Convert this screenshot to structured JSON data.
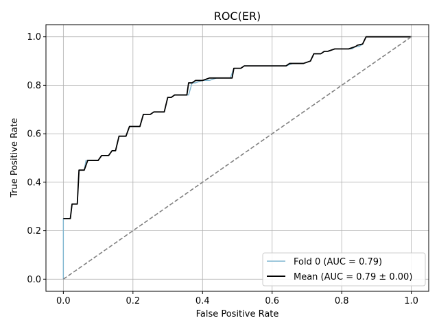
{
  "chart_data": {
    "type": "line",
    "title": "ROC(ER)",
    "xlabel": "False Positive Rate",
    "ylabel": "True Positive Rate",
    "xlim": [
      -0.05,
      1.05
    ],
    "ylim": [
      -0.05,
      1.05
    ],
    "xticks": [
      "0.0",
      "0.2",
      "0.4",
      "0.6",
      "0.8",
      "1.0"
    ],
    "yticks": [
      "0.0",
      "0.2",
      "0.4",
      "0.6",
      "0.8",
      "1.0"
    ],
    "grid": true,
    "legend_position": "lower-right",
    "series": [
      {
        "name": "Fold 0 (AUC = 0.79)",
        "color": "#7fb6d0",
        "style": "step",
        "x": [
          0.0,
          0.0,
          0.02,
          0.025,
          0.04,
          0.045,
          0.06,
          0.065,
          0.1,
          0.11,
          0.13,
          0.14,
          0.15,
          0.16,
          0.18,
          0.19,
          0.22,
          0.23,
          0.25,
          0.26,
          0.29,
          0.3,
          0.31,
          0.32,
          0.36,
          0.37,
          0.38,
          0.4,
          0.42,
          0.44,
          0.46,
          0.48,
          0.49,
          0.51,
          0.52,
          0.55,
          0.6,
          0.64,
          0.66,
          0.69,
          0.71,
          0.72,
          0.74,
          0.75,
          0.76,
          0.78,
          0.8,
          0.83,
          0.84,
          0.85,
          0.86,
          0.87,
          1.0
        ],
        "y": [
          0.0,
          0.25,
          0.25,
          0.31,
          0.31,
          0.45,
          0.45,
          0.49,
          0.49,
          0.51,
          0.51,
          0.53,
          0.53,
          0.59,
          0.59,
          0.63,
          0.63,
          0.68,
          0.68,
          0.69,
          0.69,
          0.75,
          0.75,
          0.76,
          0.76,
          0.81,
          0.81,
          0.82,
          0.82,
          0.83,
          0.83,
          0.83,
          0.87,
          0.87,
          0.88,
          0.88,
          0.88,
          0.88,
          0.89,
          0.89,
          0.9,
          0.93,
          0.93,
          0.94,
          0.94,
          0.95,
          0.95,
          0.95,
          0.96,
          0.96,
          0.97,
          1.0,
          1.0
        ]
      },
      {
        "name": "Mean (AUC = 0.79 ± 0.00)",
        "color": "#000000",
        "style": "line",
        "x": [
          0.0,
          0.0,
          0.02,
          0.025,
          0.04,
          0.045,
          0.06,
          0.07,
          0.1,
          0.11,
          0.13,
          0.14,
          0.15,
          0.16,
          0.18,
          0.19,
          0.22,
          0.23,
          0.25,
          0.26,
          0.29,
          0.3,
          0.31,
          0.32,
          0.355,
          0.36,
          0.37,
          0.38,
          0.4,
          0.42,
          0.44,
          0.485,
          0.49,
          0.5,
          0.51,
          0.52,
          0.55,
          0.6,
          0.64,
          0.65,
          0.69,
          0.71,
          0.72,
          0.74,
          0.75,
          0.76,
          0.78,
          0.8,
          0.82,
          0.83,
          0.84,
          0.845,
          0.86,
          0.87,
          1.0
        ],
        "y": [
          0.25,
          0.25,
          0.25,
          0.31,
          0.31,
          0.45,
          0.45,
          0.49,
          0.49,
          0.51,
          0.51,
          0.53,
          0.53,
          0.59,
          0.59,
          0.63,
          0.63,
          0.68,
          0.68,
          0.69,
          0.69,
          0.75,
          0.75,
          0.76,
          0.76,
          0.81,
          0.81,
          0.82,
          0.82,
          0.83,
          0.83,
          0.83,
          0.87,
          0.87,
          0.87,
          0.88,
          0.88,
          0.88,
          0.88,
          0.89,
          0.89,
          0.9,
          0.93,
          0.93,
          0.94,
          0.94,
          0.95,
          0.95,
          0.95,
          0.955,
          0.96,
          0.965,
          0.97,
          1.0,
          1.0
        ]
      },
      {
        "name": "",
        "color": "#808080",
        "style": "dashed",
        "x": [
          0.0,
          1.0
        ],
        "y": [
          0.0,
          1.0
        ]
      }
    ]
  }
}
